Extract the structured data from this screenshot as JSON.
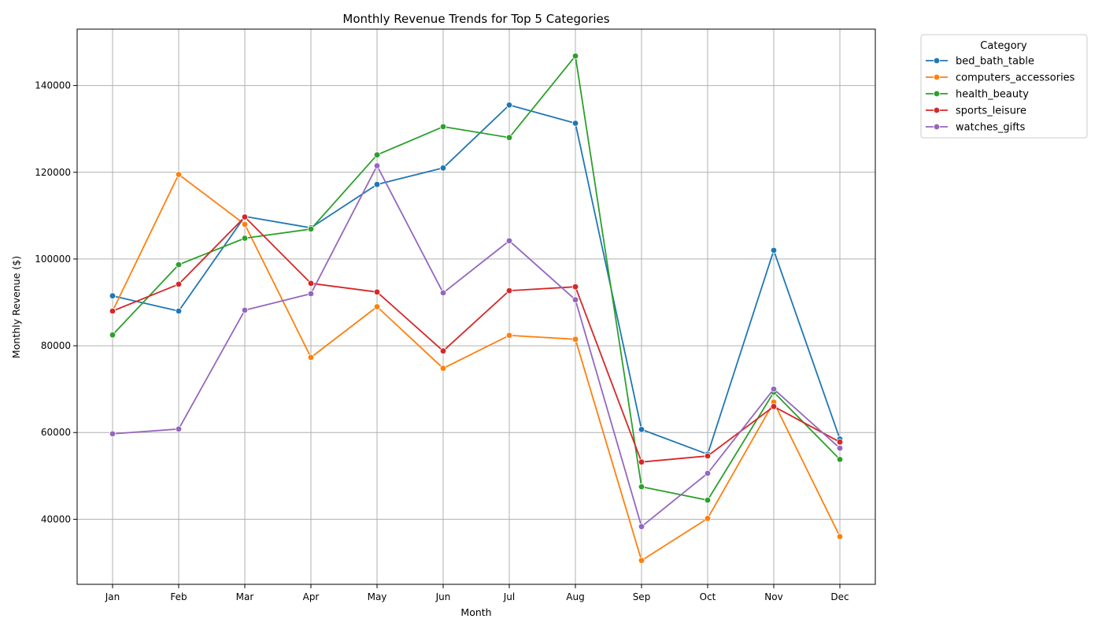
{
  "chart_data": {
    "type": "line",
    "title": "Monthly Revenue Trends for Top 5 Categories",
    "xlabel": "Month",
    "ylabel": "Monthly Revenue ($)",
    "categories": [
      "Jan",
      "Feb",
      "Mar",
      "Apr",
      "May",
      "Jun",
      "Jul",
      "Aug",
      "Sep",
      "Oct",
      "Nov",
      "Dec"
    ],
    "ylim": [
      25000,
      153000
    ],
    "yticks": [
      40000,
      60000,
      80000,
      100000,
      120000,
      140000
    ],
    "grid": true,
    "legend": {
      "title": "Category",
      "placement": "outside-top-right"
    },
    "series": [
      {
        "name": "bed_bath_table",
        "color": "#1f77b4",
        "values": [
          91500,
          88000,
          109800,
          107200,
          117200,
          121000,
          135500,
          131300,
          60700,
          55000,
          102000,
          58500
        ]
      },
      {
        "name": "computers_accessories",
        "color": "#ff7f0e",
        "values": [
          88000,
          119500,
          108000,
          77300,
          89000,
          74800,
          82400,
          81500,
          30500,
          40200,
          67000,
          36000
        ]
      },
      {
        "name": "health_beauty",
        "color": "#2ca02c",
        "values": [
          82500,
          98700,
          104800,
          106900,
          124000,
          130500,
          128000,
          146800,
          47500,
          44400,
          69300,
          53800
        ]
      },
      {
        "name": "sports_leisure",
        "color": "#d62728",
        "values": [
          88000,
          94200,
          109700,
          94400,
          92400,
          78800,
          92700,
          93600,
          53200,
          54600,
          66000,
          57800
        ]
      },
      {
        "name": "watches_gifts",
        "color": "#9467bd",
        "values": [
          59700,
          60800,
          88200,
          92000,
          121500,
          92200,
          104200,
          90600,
          38300,
          50600,
          70000,
          56400
        ]
      }
    ]
  }
}
